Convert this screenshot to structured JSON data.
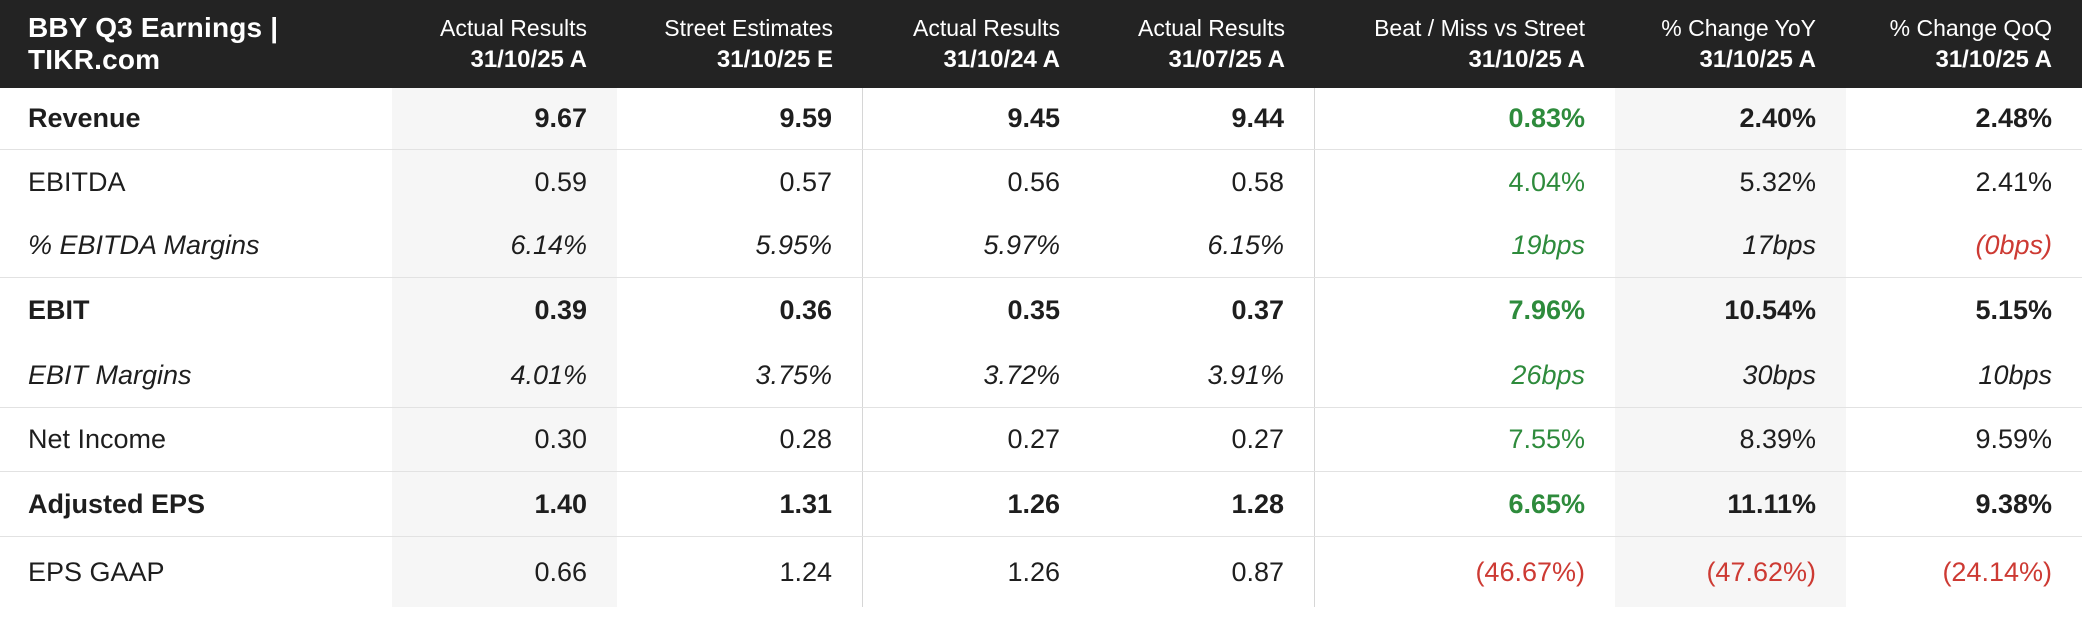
{
  "colors": {
    "header_bg": "#232323",
    "text": "#1e1e1e",
    "positive_green": "#2e8b3c",
    "negative_red": "#cd3a33",
    "shaded_column_bg": "#f6f6f6",
    "row_border": "#e2e2e2",
    "column_divider": "#d6d6d6"
  },
  "chart_data": {
    "type": "table",
    "title": "BBY Q3 Earnings | TIKR.com",
    "column_headers": [
      {
        "label": "Actual Results",
        "date": "31/10/25 A"
      },
      {
        "label": "Street Estimates",
        "date": "31/10/25 E"
      },
      {
        "label": "Actual Results",
        "date": "31/10/24 A"
      },
      {
        "label": "Actual Results",
        "date": "31/07/25 A"
      },
      {
        "label": "Beat / Miss vs Street",
        "date": "31/10/25 A"
      },
      {
        "label": "% Change YoY",
        "date": "31/10/25 A"
      },
      {
        "label": "% Change QoQ",
        "date": "31/10/25 A"
      }
    ],
    "shaded_columns": [
      "Actual Results 31/10/25 A",
      "% Change YoY 31/10/25 A"
    ],
    "rows": [
      {
        "label": "Revenue",
        "emphasis": "bold",
        "values": [
          "9.67",
          "9.59",
          "9.45",
          "9.44",
          "0.83%",
          "2.40%",
          "2.48%"
        ],
        "value_colors": [
          "default",
          "default",
          "default",
          "default",
          "green",
          "default",
          "default"
        ]
      },
      {
        "label": "EBITDA",
        "emphasis": "normal",
        "values": [
          "0.59",
          "0.57",
          "0.56",
          "0.58",
          "4.04%",
          "5.32%",
          "2.41%"
        ],
        "value_colors": [
          "default",
          "default",
          "default",
          "default",
          "green",
          "default",
          "default"
        ]
      },
      {
        "label": "% EBITDA Margins",
        "emphasis": "italic",
        "values": [
          "6.14%",
          "5.95%",
          "5.97%",
          "6.15%",
          "19bps",
          "17bps",
          "(0bps)"
        ],
        "value_colors": [
          "default",
          "default",
          "default",
          "default",
          "green",
          "default",
          "red"
        ]
      },
      {
        "label": "EBIT",
        "emphasis": "bold",
        "values": [
          "0.39",
          "0.36",
          "0.35",
          "0.37",
          "7.96%",
          "10.54%",
          "5.15%"
        ],
        "value_colors": [
          "default",
          "default",
          "default",
          "default",
          "green",
          "default",
          "default"
        ]
      },
      {
        "label": "EBIT Margins",
        "emphasis": "italic",
        "values": [
          "4.01%",
          "3.75%",
          "3.72%",
          "3.91%",
          "26bps",
          "30bps",
          "10bps"
        ],
        "value_colors": [
          "default",
          "default",
          "default",
          "default",
          "green",
          "default",
          "default"
        ]
      },
      {
        "label": "Net Income",
        "emphasis": "normal",
        "values": [
          "0.30",
          "0.28",
          "0.27",
          "0.27",
          "7.55%",
          "8.39%",
          "9.59%"
        ],
        "value_colors": [
          "default",
          "default",
          "default",
          "default",
          "green",
          "default",
          "default"
        ]
      },
      {
        "label": "Adjusted EPS",
        "emphasis": "bold",
        "values": [
          "1.40",
          "1.31",
          "1.26",
          "1.28",
          "6.65%",
          "11.11%",
          "9.38%"
        ],
        "value_colors": [
          "default",
          "default",
          "default",
          "default",
          "green",
          "default",
          "default"
        ]
      },
      {
        "label": "EPS GAAP",
        "emphasis": "normal",
        "values": [
          "0.66",
          "1.24",
          "1.26",
          "0.87",
          "(46.67%)",
          "(47.62%)",
          "(24.14%)"
        ],
        "value_colors": [
          "default",
          "default",
          "default",
          "default",
          "red",
          "red",
          "red"
        ]
      }
    ]
  }
}
